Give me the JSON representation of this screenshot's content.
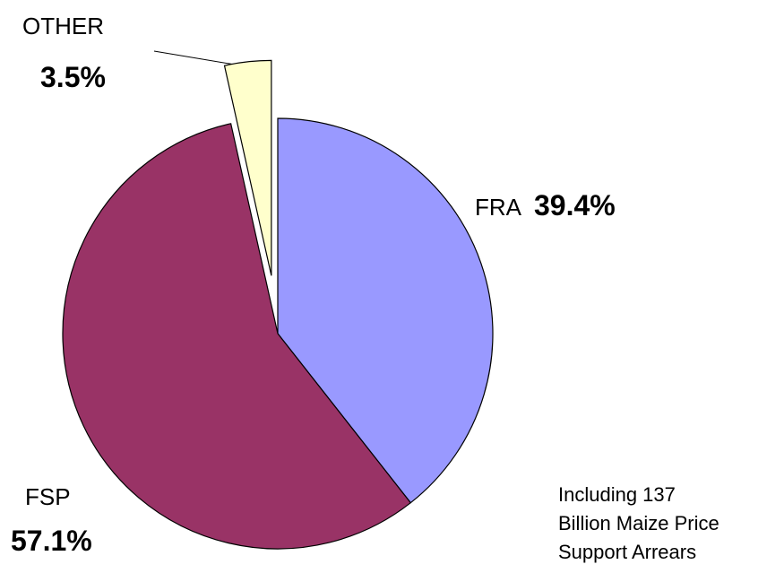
{
  "chart_data": {
    "type": "pie",
    "categories": [
      "FRA",
      "FSP",
      "OTHER"
    ],
    "values": [
      39.4,
      57.1,
      3.5
    ],
    "value_labels": [
      "39.4%",
      "57.1%",
      "3.5%"
    ],
    "colors": [
      "#9999ff",
      "#993366",
      "#ffffcc"
    ],
    "exploded": "OTHER",
    "annotation": [
      "Including 137",
      "Billion Maize Price",
      "Support Arrears"
    ]
  }
}
